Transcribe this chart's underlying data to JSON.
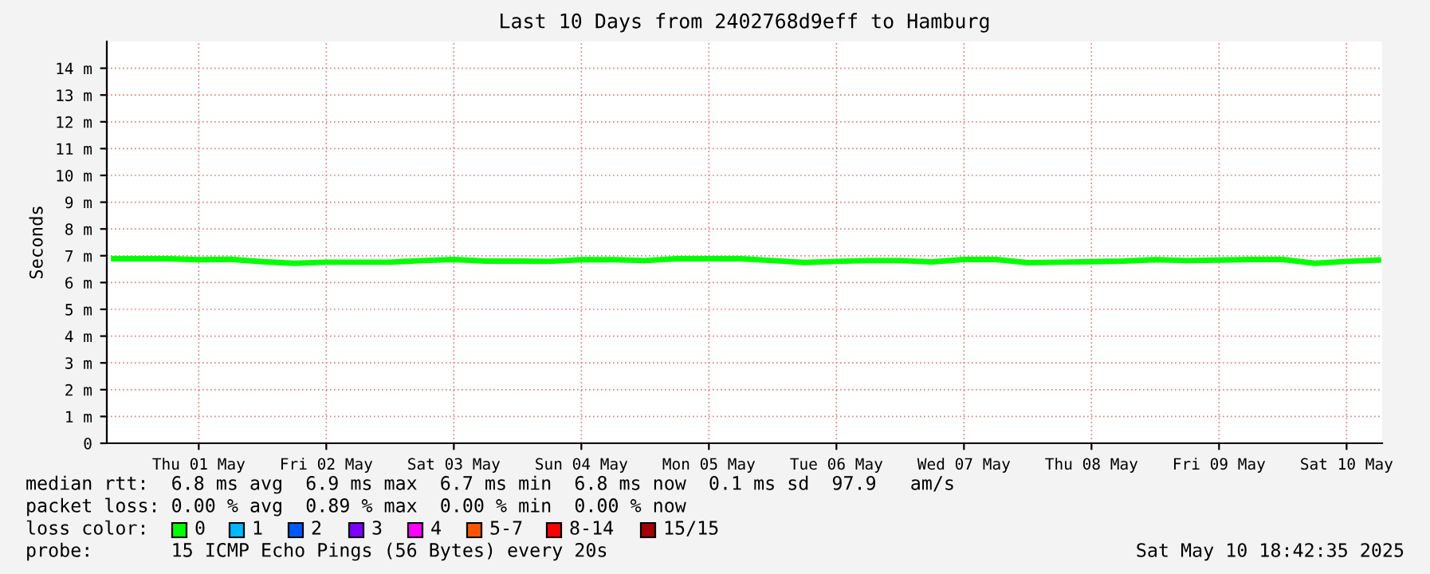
{
  "chart_data": {
    "type": "line",
    "title": "Last 10 Days from 2402768d9eff to Hamburg",
    "ylabel": "Seconds",
    "x": [
      "2025-04-30T20:00",
      "2025-05-01T00:00",
      "2025-05-01T06:00",
      "2025-05-01T12:00",
      "2025-05-01T18:00",
      "2025-05-02T00:00",
      "2025-05-02T06:00",
      "2025-05-02T12:00",
      "2025-05-02T18:00",
      "2025-05-03T00:00",
      "2025-05-03T06:00",
      "2025-05-03T12:00",
      "2025-05-03T18:00",
      "2025-05-04T00:00",
      "2025-05-04T06:00",
      "2025-05-04T12:00",
      "2025-05-04T18:00",
      "2025-05-05T00:00",
      "2025-05-05T06:00",
      "2025-05-05T12:00",
      "2025-05-05T18:00",
      "2025-05-06T00:00",
      "2025-05-06T06:00",
      "2025-05-06T12:00",
      "2025-05-06T18:00",
      "2025-05-07T00:00",
      "2025-05-07T06:00",
      "2025-05-07T12:00",
      "2025-05-07T18:00",
      "2025-05-08T00:00",
      "2025-05-08T06:00",
      "2025-05-08T12:00",
      "2025-05-08T18:00",
      "2025-05-09T00:00",
      "2025-05-09T06:00",
      "2025-05-09T12:00",
      "2025-05-09T18:00",
      "2025-05-10T00:00",
      "2025-05-10T06:00",
      "2025-05-10T12:00",
      "2025-05-10T18:00"
    ],
    "series": [
      {
        "color": "#00ff00",
        "values": [
          6.89,
          6.89,
          6.89,
          6.85,
          6.87,
          6.78,
          6.72,
          6.76,
          6.76,
          6.76,
          6.82,
          6.86,
          6.8,
          6.8,
          6.79,
          6.85,
          6.85,
          6.82,
          6.89,
          6.89,
          6.89,
          6.82,
          6.75,
          6.79,
          6.82,
          6.82,
          6.77,
          6.86,
          6.86,
          6.74,
          6.76,
          6.78,
          6.8,
          6.85,
          6.82,
          6.84,
          6.86,
          6.86,
          6.72,
          6.79,
          6.84
        ]
      }
    ],
    "xlim": [
      "2025-04-30T18:42",
      "2025-05-10T18:42"
    ],
    "xticks": [
      {
        "value": "2025-05-01T12:00",
        "label": "Thu 01 May"
      },
      {
        "value": "2025-05-02T12:00",
        "label": "Fri 02 May"
      },
      {
        "value": "2025-05-03T12:00",
        "label": "Sat 03 May"
      },
      {
        "value": "2025-05-04T12:00",
        "label": "Sun 04 May"
      },
      {
        "value": "2025-05-05T12:00",
        "label": "Mon 05 May"
      },
      {
        "value": "2025-05-06T12:00",
        "label": "Tue 06 May"
      },
      {
        "value": "2025-05-07T12:00",
        "label": "Wed 07 May"
      },
      {
        "value": "2025-05-08T12:00",
        "label": "Thu 08 May"
      },
      {
        "value": "2025-05-09T12:00",
        "label": "Fri 09 May"
      },
      {
        "value": "2025-05-10T12:00",
        "label": "Sat 10 May"
      }
    ],
    "ylim": [
      0,
      15
    ],
    "yticks": [
      0,
      {
        "value": 1,
        "label": "1 m"
      },
      {
        "value": 2,
        "label": "2 m"
      },
      {
        "value": 3,
        "label": "3 m"
      },
      {
        "value": 4,
        "label": "4 m"
      },
      {
        "value": 5,
        "label": "5 m"
      },
      {
        "value": 6,
        "label": "6 m"
      },
      {
        "value": 7,
        "label": "7 m"
      },
      {
        "value": 8,
        "label": "8 m"
      },
      {
        "value": 9,
        "label": "9 m"
      },
      {
        "value": 10,
        "label": "10 m"
      },
      {
        "value": 11,
        "label": "11 m"
      },
      {
        "value": 12,
        "label": "12 m"
      },
      {
        "value": 13,
        "label": "13 m"
      },
      {
        "value": 14,
        "label": "14 m"
      }
    ],
    "grid": true,
    "legend": false,
    "annotations": [
      "median rtt:  6.8 ms avg  6.9 ms max  6.7 ms min  6.8 ms now  0.1 ms sd  97.9   am/s",
      "packet loss: 0.00 % avg  0.89 % max  0.00 % min  0.00 % now",
      "loss color:",
      "0",
      "1",
      "2",
      "3",
      "4",
      "5-7",
      "8-14",
      "15/15",
      "probe:       15 ICMP Echo Pings (56 Bytes) every 20s",
      "Sat May 10 18:42:35 2025"
    ]
  }
}
